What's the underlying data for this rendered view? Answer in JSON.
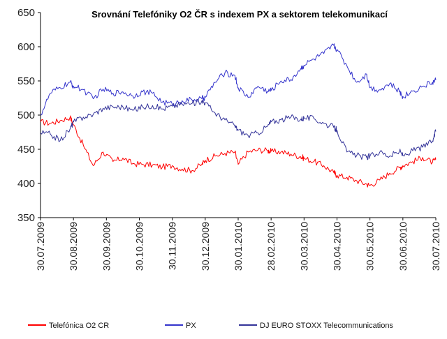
{
  "chart_data": {
    "type": "line",
    "title": "Srovnání Telefóniky O2 ČR s indexem PX a sektorem telekomunikací",
    "xlabel": "",
    "ylabel": "",
    "ylim": [
      350,
      650
    ],
    "yticks": [
      "650",
      "600",
      "550",
      "500",
      "450",
      "400",
      "350"
    ],
    "xticks": [
      "30.07.2009",
      "30.08.2009",
      "30.09.2009",
      "30.10.2009",
      "30.11.2009",
      "30.12.2009",
      "30.01.2010",
      "28.02.2010",
      "30.03.2010",
      "30.04.2010",
      "30.05.2010",
      "30.06.2010",
      "30.07.2010"
    ],
    "grid": false,
    "legend_position": "bottom",
    "series": [
      {
        "name": "Telefónica O2 CR",
        "color": "#ff0000",
        "x": [
          0,
          0.3,
          0.6,
          0.9,
          1.0,
          1.3,
          1.6,
          1.9,
          2.2,
          2.5,
          2.8,
          3.1,
          3.4,
          3.7,
          4.0,
          4.3,
          4.6,
          4.9,
          5.0,
          5.3,
          5.6,
          5.9,
          6.0,
          6.3,
          6.6,
          6.9,
          7.0,
          7.3,
          7.6,
          7.9,
          8.0,
          8.3,
          8.6,
          8.9,
          9.0,
          9.3,
          9.6,
          9.9,
          10.0,
          10.3,
          10.6,
          10.9,
          11.0,
          11.3,
          11.6,
          11.9,
          12.0
        ],
        "values": [
          490,
          488,
          492,
          497,
          486,
          456,
          426,
          446,
          432,
          437,
          429,
          428,
          427,
          424,
          426,
          421,
          419,
          428,
          434,
          440,
          444,
          446,
          428,
          446,
          449,
          448,
          447,
          446,
          443,
          439,
          437,
          432,
          426,
          416,
          412,
          409,
          404,
          399,
          397,
          405,
          415,
          423,
          426,
          432,
          438,
          431,
          435
        ]
      },
      {
        "name": "PX",
        "color": "#3333cc",
        "x": [
          0,
          0.3,
          0.6,
          0.9,
          1.0,
          1.3,
          1.6,
          1.9,
          2.2,
          2.5,
          2.8,
          3.1,
          3.4,
          3.7,
          4.0,
          4.3,
          4.6,
          4.9,
          5.0,
          5.3,
          5.6,
          5.9,
          6.0,
          6.3,
          6.6,
          6.9,
          7.0,
          7.3,
          7.6,
          7.9,
          8.0,
          8.3,
          8.6,
          8.9,
          9.0,
          9.3,
          9.6,
          9.9,
          10.0,
          10.3,
          10.6,
          10.9,
          11.0,
          11.3,
          11.6,
          11.9,
          12.0
        ],
        "values": [
          500,
          532,
          540,
          548,
          542,
          537,
          524,
          538,
          532,
          534,
          528,
          534,
          532,
          519,
          516,
          521,
          522,
          524,
          526,
          548,
          562,
          558,
          540,
          526,
          542,
          535,
          536,
          550,
          552,
          568,
          573,
          582,
          590,
          602,
          596,
          572,
          548,
          560,
          540,
          537,
          546,
          534,
          527,
          535,
          542,
          548,
          551
        ]
      },
      {
        "name": "DJ EURO STOXX Telecommunications",
        "color": "#333399",
        "x": [
          0,
          0.3,
          0.6,
          0.9,
          1.0,
          1.3,
          1.6,
          1.9,
          2.2,
          2.5,
          2.8,
          3.1,
          3.4,
          3.7,
          4.0,
          4.3,
          4.6,
          4.9,
          5.0,
          5.3,
          5.6,
          5.9,
          6.0,
          6.3,
          6.6,
          6.9,
          7.0,
          7.3,
          7.6,
          7.9,
          8.0,
          8.3,
          8.6,
          8.9,
          9.0,
          9.3,
          9.6,
          9.9,
          10.0,
          10.3,
          10.6,
          10.9,
          11.0,
          11.3,
          11.6,
          11.9,
          12.0
        ],
        "values": [
          474,
          472,
          463,
          480,
          490,
          497,
          501,
          510,
          512,
          512,
          507,
          512,
          514,
          509,
          513,
          516,
          517,
          521,
          518,
          503,
          493,
          484,
          478,
          470,
          474,
          484,
          490,
          493,
          497,
          494,
          496,
          495,
          488,
          482,
          478,
          446,
          441,
          438,
          440,
          446,
          440,
          447,
          441,
          448,
          453,
          462,
          476
        ]
      }
    ]
  }
}
